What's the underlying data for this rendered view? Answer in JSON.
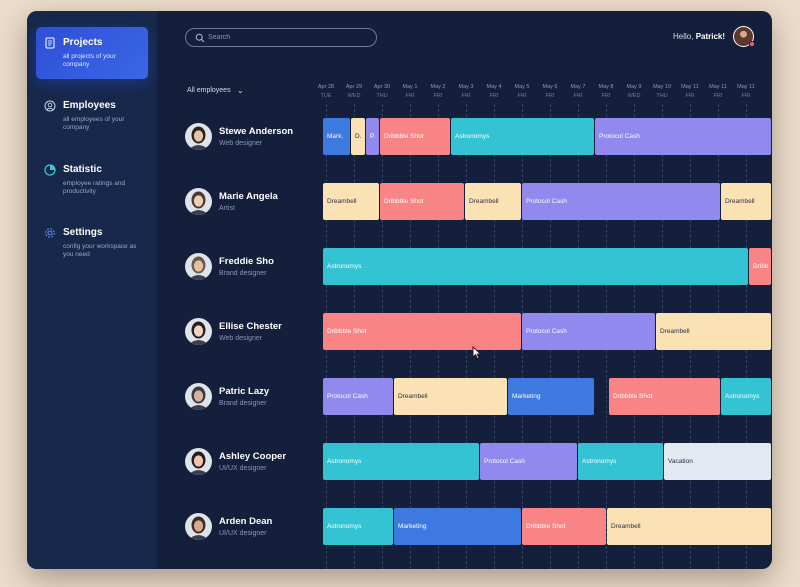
{
  "nav": [
    {
      "title": "Projects",
      "desc": "all projects of your company",
      "icon": "document-icon",
      "active": true
    },
    {
      "title": "Employees",
      "desc": "all employees of your company",
      "icon": "user-circle-icon",
      "active": false
    },
    {
      "title": "Statistic",
      "desc": "employee ratings and productivity",
      "icon": "pie-chart-icon",
      "active": false
    },
    {
      "title": "Settings",
      "desc": "config your workspace as you need",
      "icon": "gear-icon",
      "active": false
    }
  ],
  "search": {
    "placeholder": "Search"
  },
  "header": {
    "greeting": "Hello,",
    "user": "Patrick!"
  },
  "filter": {
    "label": "All employees"
  },
  "days": [
    {
      "date": "Apr 28",
      "wd": "TUE"
    },
    {
      "date": "Apr 29",
      "wd": "WED"
    },
    {
      "date": "Apr 30",
      "wd": "THU"
    },
    {
      "date": "May 1",
      "wd": "FRI"
    },
    {
      "date": "May 2",
      "wd": "FRI"
    },
    {
      "date": "May 3",
      "wd": "FRI"
    },
    {
      "date": "May 4",
      "wd": "FRI"
    },
    {
      "date": "May 5",
      "wd": "FRI"
    },
    {
      "date": "May 6",
      "wd": "FRI"
    },
    {
      "date": "May 7",
      "wd": "FRI"
    },
    {
      "date": "May 8",
      "wd": "FRI"
    },
    {
      "date": "May 9",
      "wd": "WED"
    },
    {
      "date": "May 10",
      "wd": "THU"
    },
    {
      "date": "May 11",
      "wd": "FRI"
    },
    {
      "date": "May 11",
      "wd": "FRI"
    },
    {
      "date": "May 11",
      "wd": "FRI"
    }
  ],
  "colors": {
    "blue": "#3d79de",
    "cream": "#fbe2b5",
    "purple": "#9189ee",
    "pink": "#f98486",
    "teal": "#34c3d2",
    "gray": "#e3e8f1"
  },
  "employees": [
    {
      "name": "Stewe Anderson",
      "role": "Web designer",
      "tasks": [
        {
          "label": "Mark.",
          "color": "blue"
        },
        {
          "label": "D.",
          "color": "cream"
        },
        {
          "label": "P.",
          "color": "purple"
        },
        {
          "label": "Dribbble Shot",
          "color": "pink"
        },
        {
          "label": "Astronomys",
          "color": "teal"
        },
        {
          "label": "Protocol Cash",
          "color": "purple"
        }
      ]
    },
    {
      "name": "Marie Angela",
      "role": "Artist",
      "tasks": [
        {
          "label": "Dreambell",
          "color": "cream"
        },
        {
          "label": "Dribbble Shot",
          "color": "pink"
        },
        {
          "label": "Dreambell",
          "color": "cream"
        },
        {
          "label": "Protocol Cash",
          "color": "purple"
        },
        {
          "label": "Dreambell",
          "color": "cream"
        }
      ]
    },
    {
      "name": "Freddie Sho",
      "role": "Brand designer",
      "tasks": [
        {
          "label": "Astronomys",
          "color": "teal"
        },
        {
          "label": "Dribb",
          "color": "pink"
        }
      ]
    },
    {
      "name": "Ellise Chester",
      "role": "Web designer",
      "tasks": [
        {
          "label": "Dribbble Shot",
          "color": "pink"
        },
        {
          "label": "Protocol Cash",
          "color": "purple"
        },
        {
          "label": "Dreambell",
          "color": "cream"
        }
      ]
    },
    {
      "name": "Patric Lazy",
      "role": "Brand designer",
      "tasks": [
        {
          "label": "Protocol Cash",
          "color": "purple"
        },
        {
          "label": "Dreambell",
          "color": "cream"
        },
        {
          "label": "Marketing",
          "color": "blue"
        },
        {
          "label": "Dribbble Shot",
          "color": "pink"
        },
        {
          "label": "Astronomys",
          "color": "teal"
        }
      ]
    },
    {
      "name": "Ashley Cooper",
      "role": "UI/UX designer",
      "tasks": [
        {
          "label": "Astronomys",
          "color": "teal"
        },
        {
          "label": "Protocol Cash",
          "color": "purple"
        },
        {
          "label": "Astronomys",
          "color": "teal"
        },
        {
          "label": "Vacation",
          "color": "gray"
        }
      ]
    },
    {
      "name": "Arden Dean",
      "role": "UI/UX designer",
      "tasks": [
        {
          "label": "Astronomys",
          "color": "teal"
        },
        {
          "label": "Marketing",
          "color": "blue"
        },
        {
          "label": "Dribbble Shot",
          "color": "pink"
        },
        {
          "label": "Dreambell",
          "color": "cream"
        }
      ]
    }
  ]
}
